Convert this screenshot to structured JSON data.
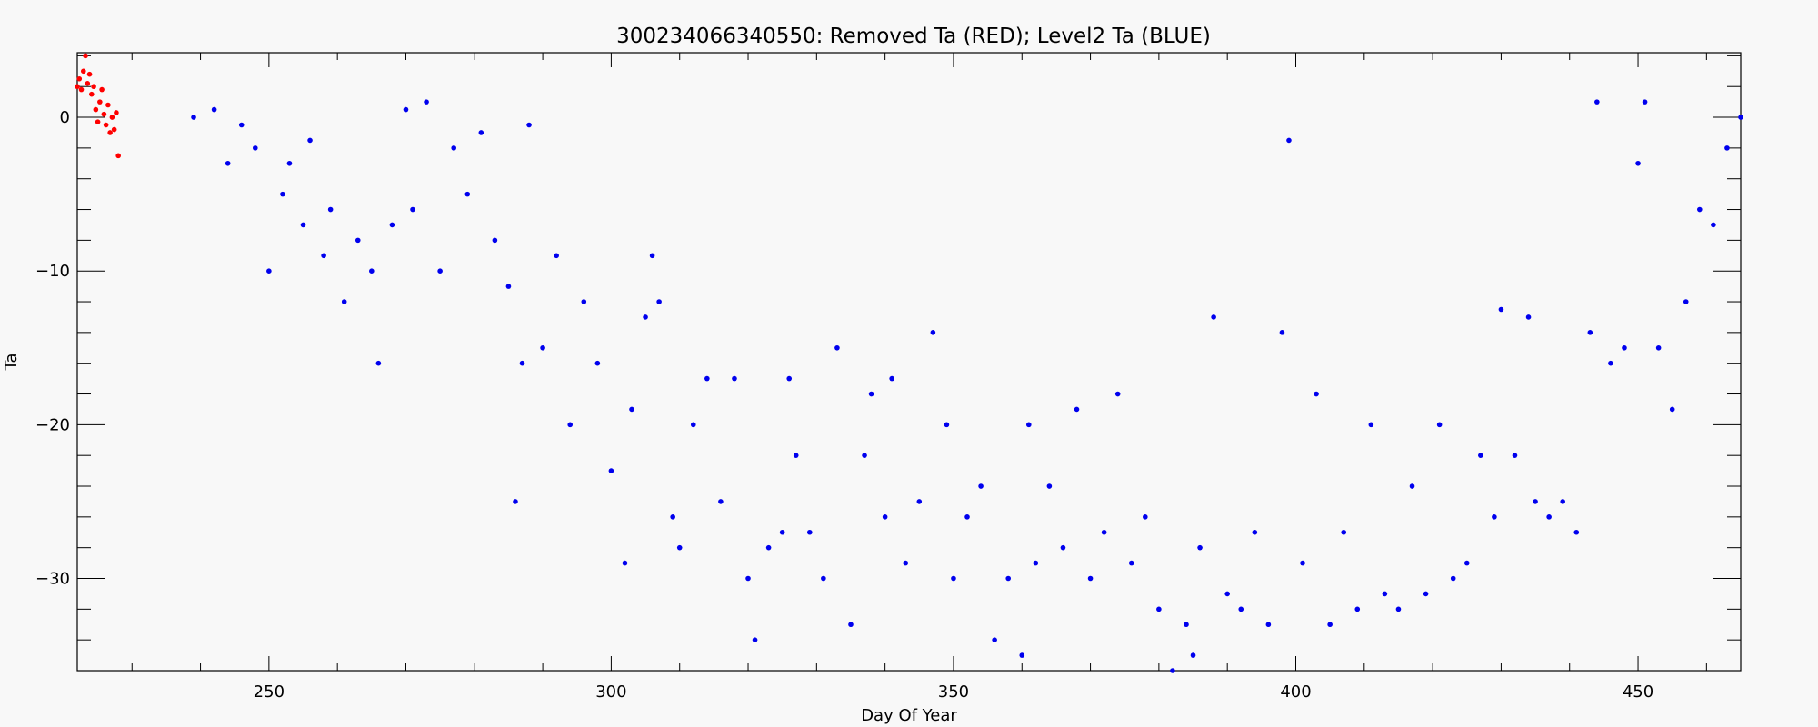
{
  "chart_data": {
    "type": "scatter",
    "title": "300234066340550: Removed Ta (RED); Level2 Ta (BLUE)",
    "xlabel": "Day Of Year",
    "ylabel": "Ta",
    "xlim": [
      222,
      465
    ],
    "ylim": [
      -36,
      4.2
    ],
    "xticks": [
      250,
      300,
      350,
      400,
      450
    ],
    "yticks": [
      0,
      -10,
      -20,
      -30
    ],
    "grid": false,
    "series": [
      {
        "name": "Removed Ta",
        "color": "#ff0000",
        "x": [
          222,
          222.3,
          222.6,
          222.9,
          223.2,
          223.5,
          223.8,
          224.1,
          224.4,
          224.7,
          225.0,
          225.3,
          225.6,
          225.9,
          226.2,
          226.5,
          226.8,
          227.1,
          227.4,
          227.7,
          228.0
        ],
        "y": [
          2.0,
          2.5,
          1.8,
          3.0,
          4.0,
          2.2,
          2.8,
          1.5,
          2.0,
          0.5,
          -0.3,
          1.0,
          1.8,
          0.2,
          -0.5,
          0.8,
          -1.0,
          0.0,
          -0.8,
          0.3,
          -2.5
        ]
      },
      {
        "name": "Level2 Ta",
        "color": "#0000ee",
        "x": [
          239,
          242,
          244,
          246,
          248,
          250,
          252,
          253,
          255,
          256,
          258,
          259,
          261,
          263,
          265,
          266,
          268,
          270,
          271,
          273,
          275,
          277,
          279,
          281,
          283,
          285,
          286,
          287,
          288,
          290,
          292,
          294,
          296,
          298,
          300,
          302,
          303,
          305,
          306,
          307,
          309,
          310,
          312,
          314,
          316,
          318,
          320,
          321,
          323,
          325,
          326,
          327,
          329,
          331,
          333,
          335,
          337,
          338,
          340,
          341,
          343,
          345,
          347,
          349,
          350,
          352,
          354,
          356,
          358,
          360,
          361,
          362,
          364,
          366,
          368,
          370,
          372,
          374,
          376,
          378,
          380,
          382,
          384,
          385,
          386,
          388,
          390,
          392,
          394,
          396,
          398,
          399,
          401,
          403,
          405,
          407,
          409,
          411,
          413,
          415,
          417,
          419,
          421,
          423,
          425,
          427,
          429,
          430,
          432,
          434,
          435,
          437,
          439,
          441,
          443,
          444,
          446,
          448,
          450,
          451,
          453,
          455,
          457,
          459,
          461,
          463,
          465
        ],
        "y": [
          0,
          0.5,
          -3,
          -0.5,
          -2,
          -10,
          -5,
          -3,
          -7,
          -1.5,
          -9,
          -6,
          -12,
          -8,
          -10,
          -16,
          -7,
          0.5,
          -6,
          1,
          -10,
          -2,
          -5,
          -1,
          -8,
          -11,
          -25,
          -16,
          -0.5,
          -15,
          -9,
          -20,
          -12,
          -16,
          -23,
          -29,
          -19,
          -13,
          -9,
          -12,
          -26,
          -28,
          -20,
          -17,
          -25,
          -17,
          -30,
          -34,
          -28,
          -27,
          -17,
          -22,
          -27,
          -30,
          -15,
          -33,
          -22,
          -18,
          -26,
          -17,
          -29,
          -25,
          -14,
          -20,
          -30,
          -26,
          -24,
          -34,
          -30,
          -35,
          -20,
          -29,
          -24,
          -28,
          -19,
          -30,
          -27,
          -18,
          -29,
          -26,
          -32,
          -36,
          -33,
          -35,
          -28,
          -13,
          -31,
          -32,
          -27,
          -33,
          -14,
          -1.5,
          -29,
          -18,
          -33,
          -27,
          -32,
          -20,
          -31,
          -32,
          -24,
          -31,
          -20,
          -30,
          -29,
          -22,
          -26,
          -12.5,
          -22,
          -13,
          -25,
          -26,
          -25,
          -27,
          -14,
          1,
          -16,
          -15,
          -3,
          1,
          -15,
          -19,
          -12,
          -6,
          -7,
          -2,
          0
        ]
      }
    ]
  }
}
